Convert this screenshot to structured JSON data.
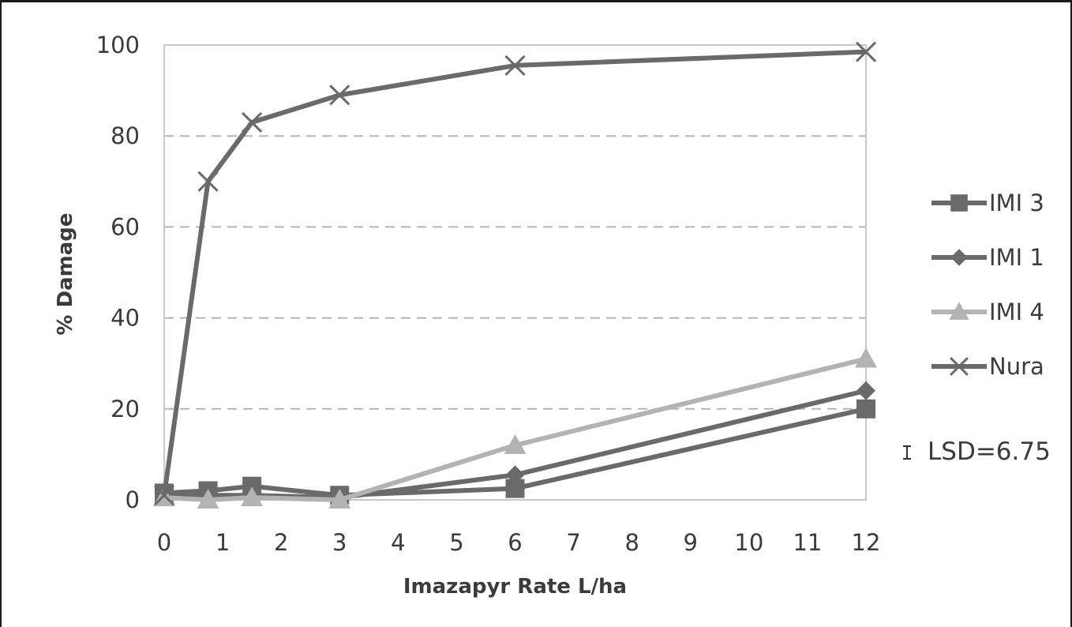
{
  "chart_data": {
    "type": "line",
    "title": "",
    "xlabel": "Imazapyr Rate L/ha",
    "ylabel": "% Damage",
    "xlim": [
      0,
      12
    ],
    "ylim": [
      0,
      100
    ],
    "xticks": [
      0,
      1,
      2,
      3,
      4,
      5,
      6,
      7,
      8,
      9,
      10,
      11,
      12
    ],
    "yticks": [
      0,
      20,
      40,
      60,
      80,
      100
    ],
    "grid": "horizontal dashed",
    "legend_position": "right",
    "x": [
      0,
      0.75,
      1.5,
      3,
      6,
      12
    ],
    "series": [
      {
        "name": "IMI 3",
        "marker": "square",
        "color": "#6a6a6a",
        "values": [
          1.5,
          2,
          3,
          1,
          2.5,
          20
        ]
      },
      {
        "name": "IMI 1",
        "marker": "diamond",
        "color": "#6a6a6a",
        "values": [
          1,
          1,
          1,
          0.5,
          5.5,
          24
        ]
      },
      {
        "name": "IMI 4",
        "marker": "triangle",
        "color": "#b3b3b3",
        "values": [
          0.5,
          0,
          0.5,
          0,
          12,
          31
        ]
      },
      {
        "name": "Nura",
        "marker": "x",
        "color": "#6a6a6a",
        "values": [
          1,
          70,
          83,
          89,
          95.5,
          98.5
        ]
      }
    ],
    "annotation": {
      "label": "LSD=6.75",
      "lsd_value": 6.75
    }
  }
}
